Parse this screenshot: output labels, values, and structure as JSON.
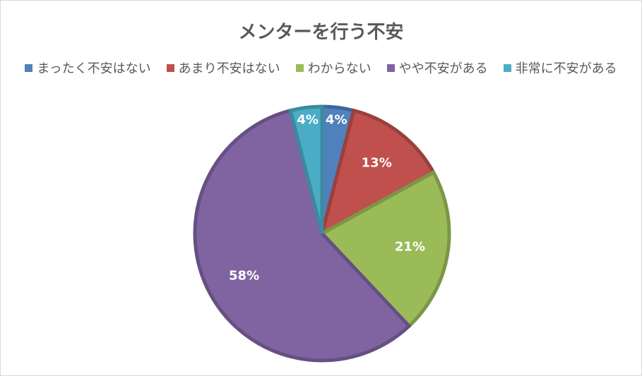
{
  "chart_data": {
    "type": "pie",
    "title": "メンターを行う不安",
    "categories": [
      "まったく不安はない",
      "あまり不安はない",
      "わからない",
      "やや不安がある",
      "非常に不安がある"
    ],
    "values": [
      4,
      13,
      21,
      58,
      4
    ],
    "value_labels": [
      "4%",
      "13%",
      "21%",
      "58%",
      "4%"
    ],
    "colors": [
      "#4f81bd",
      "#c0504d",
      "#9bbb59",
      "#8064a2",
      "#4bacc6"
    ],
    "legend": "top"
  }
}
